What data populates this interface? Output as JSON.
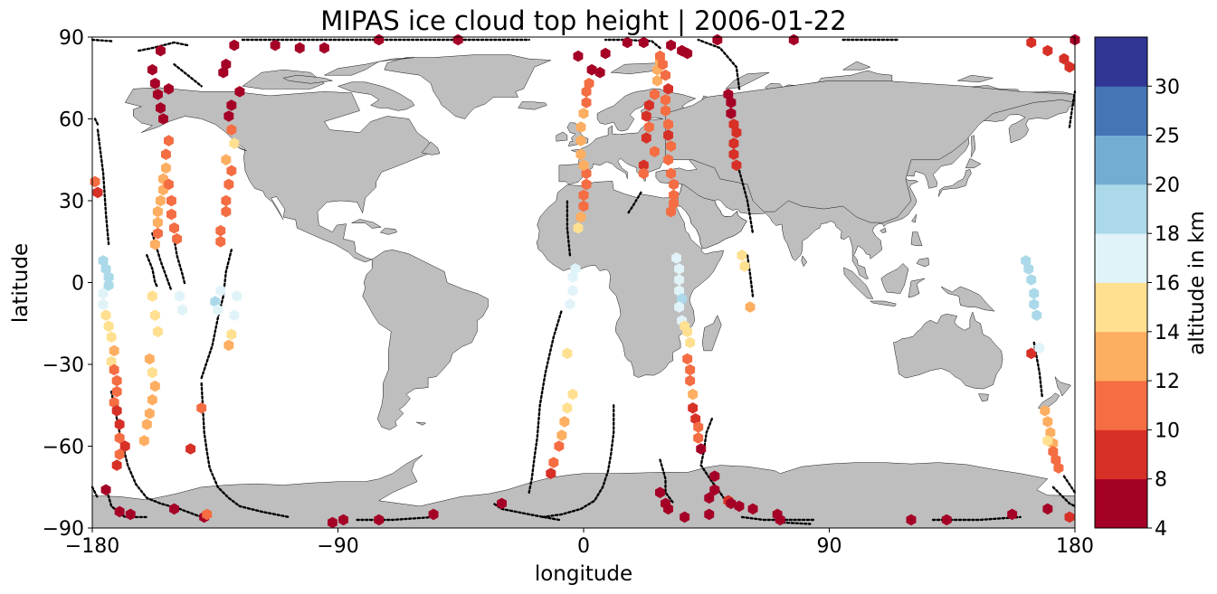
{
  "chart_data": {
    "type": "scatter",
    "title": "MIPAS ice cloud top height | 2006-01-22",
    "xlabel": "longitude",
    "ylabel": "latitude",
    "xlim": [
      -180,
      180
    ],
    "ylim": [
      -90,
      90
    ],
    "xticks": [
      -180,
      -90,
      0,
      90,
      180
    ],
    "xtick_labels": [
      "−180",
      "−90",
      "0",
      "90",
      "180"
    ],
    "yticks": [
      -90,
      -60,
      -30,
      0,
      30,
      60,
      90
    ],
    "ytick_labels": [
      "−90",
      "−60",
      "−30",
      "0",
      "30",
      "60",
      "90"
    ],
    "grid": false,
    "background_map": "continents",
    "colorbar": {
      "label": "altitude in km",
      "boundaries": [
        4,
        8,
        10,
        12,
        14,
        16,
        18,
        20,
        25,
        30
      ],
      "tick_labels": [
        "4",
        "8",
        "10",
        "12",
        "14",
        "16",
        "18",
        "20",
        "25",
        "30"
      ],
      "colors": [
        "#a50026",
        "#d73027",
        "#f46d43",
        "#fdae61",
        "#fee090",
        "#e0f3f8",
        "#abd9e9",
        "#74add1",
        "#4575b4",
        "#313695"
      ]
    },
    "colors": {
      "land": "#bebebe",
      "coast": "#000000",
      "track": "#000000"
    },
    "series": [
      {
        "marker": "hexagon",
        "points": [
          [
            -155,
            85,
            6
          ],
          [
            -128,
            87,
            6
          ],
          [
            -113,
            87,
            6
          ],
          [
            -104,
            86,
            6
          ],
          [
            -95,
            86,
            6
          ],
          [
            -75,
            89,
            6
          ],
          [
            -46,
            89,
            6
          ],
          [
            -2,
            83,
            6
          ],
          [
            8,
            84,
            6
          ],
          [
            16,
            88,
            6
          ],
          [
            22,
            88,
            6
          ],
          [
            32,
            87,
            6
          ],
          [
            36,
            85,
            6
          ],
          [
            38,
            84,
            6
          ],
          [
            49,
            89,
            6
          ],
          [
            77,
            89,
            6
          ],
          [
            164,
            88,
            8
          ],
          [
            170,
            85,
            8
          ],
          [
            176,
            82,
            8
          ],
          [
            178,
            79,
            8
          ],
          [
            180,
            89,
            6
          ],
          [
            -158,
            78,
            6
          ],
          [
            -157,
            73,
            6
          ],
          [
            -156,
            69,
            6
          ],
          [
            -155,
            64,
            6
          ],
          [
            -154,
            60,
            6
          ],
          [
            -152,
            71,
            6
          ],
          [
            -131,
            80,
            6
          ],
          [
            -132,
            77,
            6
          ],
          [
            -126,
            70,
            6
          ],
          [
            -129,
            65,
            6
          ],
          [
            -130,
            61,
            6
          ],
          [
            -129,
            56,
            11
          ],
          [
            -128,
            51,
            14
          ],
          [
            -131,
            45,
            12
          ],
          [
            -129,
            41,
            11
          ],
          [
            -130,
            36,
            11
          ],
          [
            -131,
            30,
            11
          ],
          [
            -131,
            26,
            11
          ],
          [
            -133,
            19,
            11
          ],
          [
            -133,
            15,
            11
          ],
          [
            -152,
            52,
            10
          ],
          [
            -153,
            47,
            11
          ],
          [
            -153,
            42,
            12
          ],
          [
            -154,
            38,
            13
          ],
          [
            -154,
            34,
            13
          ],
          [
            -155,
            30,
            12
          ],
          [
            -156,
            26,
            12
          ],
          [
            -156,
            22,
            12
          ],
          [
            -156,
            18,
            11
          ],
          [
            -157,
            14,
            12
          ],
          [
            -152,
            36,
            11
          ],
          [
            -151,
            30,
            11
          ],
          [
            -151,
            25,
            11
          ],
          [
            -150,
            20,
            11
          ],
          [
            -149,
            16,
            11
          ],
          [
            -179,
            37,
            10
          ],
          [
            -178,
            33,
            9
          ],
          [
            -176,
            8,
            19
          ],
          [
            -175,
            5,
            19
          ],
          [
            -174,
            2,
            19
          ],
          [
            -174,
            -1,
            19
          ],
          [
            -176,
            -4,
            17
          ],
          [
            -176,
            -8,
            17
          ],
          [
            -175,
            -12,
            15
          ],
          [
            -174,
            -16,
            14
          ],
          [
            -173,
            -20,
            14
          ],
          [
            -172,
            -25,
            12
          ],
          [
            -173,
            -29,
            14
          ],
          [
            -172,
            -32,
            11
          ],
          [
            -171,
            -36,
            10
          ],
          [
            -171,
            -40,
            11
          ],
          [
            -172,
            -44,
            10
          ],
          [
            -171,
            -47,
            9
          ],
          [
            -170,
            -52,
            9
          ],
          [
            -170,
            -57,
            11
          ],
          [
            -168,
            -60,
            9
          ],
          [
            -170,
            -63,
            10
          ],
          [
            -171,
            -67,
            9
          ],
          [
            -175,
            -76,
            6
          ],
          [
            -158,
            -5,
            15
          ],
          [
            -157,
            -12,
            14
          ],
          [
            -156,
            -18,
            14
          ],
          [
            -159,
            -28,
            13
          ],
          [
            -158,
            -33,
            14
          ],
          [
            -157,
            -38,
            13
          ],
          [
            -158,
            -43,
            13
          ],
          [
            -159,
            -48,
            13
          ],
          [
            -160,
            -52,
            12
          ],
          [
            -161,
            -58,
            12
          ],
          [
            -148,
            -5,
            17
          ],
          [
            -147,
            -10,
            17
          ],
          [
            -133,
            -3,
            17
          ],
          [
            -135,
            -7,
            18
          ],
          [
            -134,
            -10,
            17
          ],
          [
            -127,
            -5,
            17
          ],
          [
            -128,
            -12,
            16
          ],
          [
            -129,
            -19,
            14
          ],
          [
            -130,
            -23,
            13
          ],
          [
            -140,
            -46,
            11
          ],
          [
            -144,
            -61,
            9
          ],
          [
            -170,
            -84,
            6
          ],
          [
            -166,
            -85,
            6
          ],
          [
            -150,
            -83,
            6
          ],
          [
            -139,
            -86,
            6
          ],
          [
            -138,
            -85,
            10
          ],
          [
            -88,
            -87,
            6
          ],
          [
            -75,
            -87,
            6
          ],
          [
            -55,
            -85,
            6
          ],
          [
            -30,
            -81,
            6
          ],
          [
            -12,
            -70,
            9
          ],
          [
            -11,
            -66,
            10
          ],
          [
            -9,
            -60,
            10
          ],
          [
            -8,
            -56,
            12
          ],
          [
            -7,
            -51,
            13
          ],
          [
            -6,
            -46,
            14
          ],
          [
            -4,
            -41,
            15
          ],
          [
            -6,
            -26,
            15
          ],
          [
            -5,
            -8,
            16
          ],
          [
            -4,
            -3,
            17
          ],
          [
            -4,
            2,
            17
          ],
          [
            -3,
            5,
            17
          ],
          [
            -2,
            20,
            14
          ],
          [
            -1,
            24,
            13
          ],
          [
            0,
            28,
            10
          ],
          [
            0,
            32,
            10
          ],
          [
            1,
            36,
            10
          ],
          [
            1,
            40,
            11
          ],
          [
            0,
            43,
            13
          ],
          [
            -1,
            47,
            13
          ],
          [
            -1,
            52,
            13
          ],
          [
            -1,
            57,
            13
          ],
          [
            0,
            62,
            13
          ],
          [
            1,
            66,
            10
          ],
          [
            1,
            70,
            10
          ],
          [
            2,
            73,
            10
          ],
          [
            3,
            78,
            6
          ],
          [
            6,
            77,
            6
          ],
          [
            24,
            65,
            9
          ],
          [
            23,
            61,
            9
          ],
          [
            24,
            57,
            10
          ],
          [
            23,
            53,
            8
          ],
          [
            22,
            43,
            9
          ],
          [
            22,
            40,
            10
          ],
          [
            26,
            48,
            11
          ],
          [
            26,
            69,
            11
          ],
          [
            27,
            74,
            12
          ],
          [
            27,
            78,
            12
          ],
          [
            28,
            81,
            12
          ],
          [
            28,
            83,
            11
          ],
          [
            29,
            80,
            10
          ],
          [
            30,
            76,
            10
          ],
          [
            31,
            71,
            9
          ],
          [
            30,
            67,
            10
          ],
          [
            30,
            63,
            10
          ],
          [
            31,
            58,
            11
          ],
          [
            31,
            54,
            9
          ],
          [
            32,
            50,
            10
          ],
          [
            31,
            45,
            11
          ],
          [
            32,
            40,
            11
          ],
          [
            33,
            36,
            10
          ],
          [
            33,
            32,
            11
          ],
          [
            33,
            29,
            11
          ],
          [
            32,
            26,
            11
          ],
          [
            34,
            9,
            16
          ],
          [
            35,
            5,
            17
          ],
          [
            35,
            1,
            17
          ],
          [
            35,
            -3,
            17
          ],
          [
            36,
            -6,
            18
          ],
          [
            35,
            -9,
            17
          ],
          [
            36,
            -14,
            17
          ],
          [
            37,
            -16,
            15
          ],
          [
            38,
            -18,
            14
          ],
          [
            39,
            -22,
            14
          ],
          [
            38,
            -28,
            11
          ],
          [
            39,
            -32,
            11
          ],
          [
            39,
            -36,
            11
          ],
          [
            40,
            -41,
            12
          ],
          [
            40,
            -46,
            9
          ],
          [
            41,
            -50,
            9
          ],
          [
            42,
            -53,
            10
          ],
          [
            42,
            -57,
            10
          ],
          [
            43,
            -61,
            6
          ],
          [
            48,
            -71,
            6
          ],
          [
            48,
            -76,
            6
          ],
          [
            46,
            -79,
            6
          ],
          [
            30,
            -81,
            6
          ],
          [
            28,
            -77,
            6
          ],
          [
            31,
            -83,
            6
          ],
          [
            37,
            -86,
            6
          ],
          [
            46,
            -85,
            6
          ],
          [
            53,
            -80,
            9
          ],
          [
            54,
            -81,
            6
          ],
          [
            57,
            -82,
            6
          ],
          [
            62,
            -83,
            6
          ],
          [
            71,
            -85,
            6
          ],
          [
            72,
            -87,
            6
          ],
          [
            53,
            69,
            6
          ],
          [
            54,
            66,
            6
          ],
          [
            54,
            62,
            6
          ],
          [
            55,
            58,
            9
          ],
          [
            56,
            55,
            9
          ],
          [
            55,
            51,
            9
          ],
          [
            55,
            47,
            9
          ],
          [
            56,
            43,
            9
          ],
          [
            58,
            10,
            15
          ],
          [
            59,
            6,
            15
          ],
          [
            61,
            -9,
            13
          ],
          [
            162,
            8,
            19
          ],
          [
            163,
            5,
            19
          ],
          [
            164,
            1,
            19
          ],
          [
            165,
            -4,
            19
          ],
          [
            165,
            -8,
            19
          ],
          [
            166,
            -12,
            19
          ],
          [
            164,
            -26,
            9
          ],
          [
            167,
            -24,
            16
          ],
          [
            169,
            -47,
            13
          ],
          [
            170,
            -51,
            13
          ],
          [
            171,
            -55,
            12
          ],
          [
            172,
            -59,
            12
          ],
          [
            172,
            -62,
            11
          ],
          [
            173,
            -65,
            11
          ],
          [
            174,
            -68,
            10
          ],
          [
            170,
            -58,
            14
          ],
          [
            -92,
            -88,
            6
          ],
          [
            120,
            -87,
            6
          ],
          [
            133,
            -87,
            6
          ],
          [
            157,
            -85,
            6
          ],
          [
            170,
            -83,
            6
          ],
          [
            178,
            -86,
            9
          ]
        ]
      }
    ]
  }
}
